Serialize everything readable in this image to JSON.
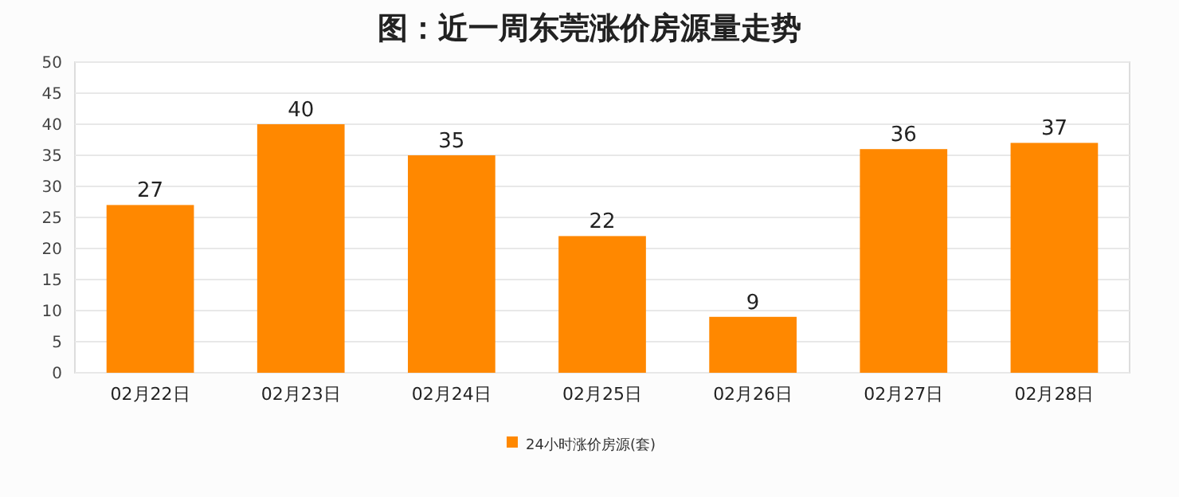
{
  "chart_data": {
    "type": "bar",
    "title": "图：近一周东莞涨价房源量走势",
    "categories": [
      "02月22日",
      "02月23日",
      "02月24日",
      "02月25日",
      "02月26日",
      "02月27日",
      "02月28日"
    ],
    "series": [
      {
        "name": "24小时涨价房源(套)",
        "color": "#ff8800",
        "values": [
          27,
          40,
          35,
          22,
          9,
          36,
          37
        ]
      }
    ],
    "ylim": [
      0,
      50
    ],
    "yticks": [
      0,
      5,
      10,
      15,
      20,
      25,
      30,
      35,
      40,
      45,
      50
    ],
    "grid": "y",
    "legend": "bottom",
    "data_labels": true
  }
}
